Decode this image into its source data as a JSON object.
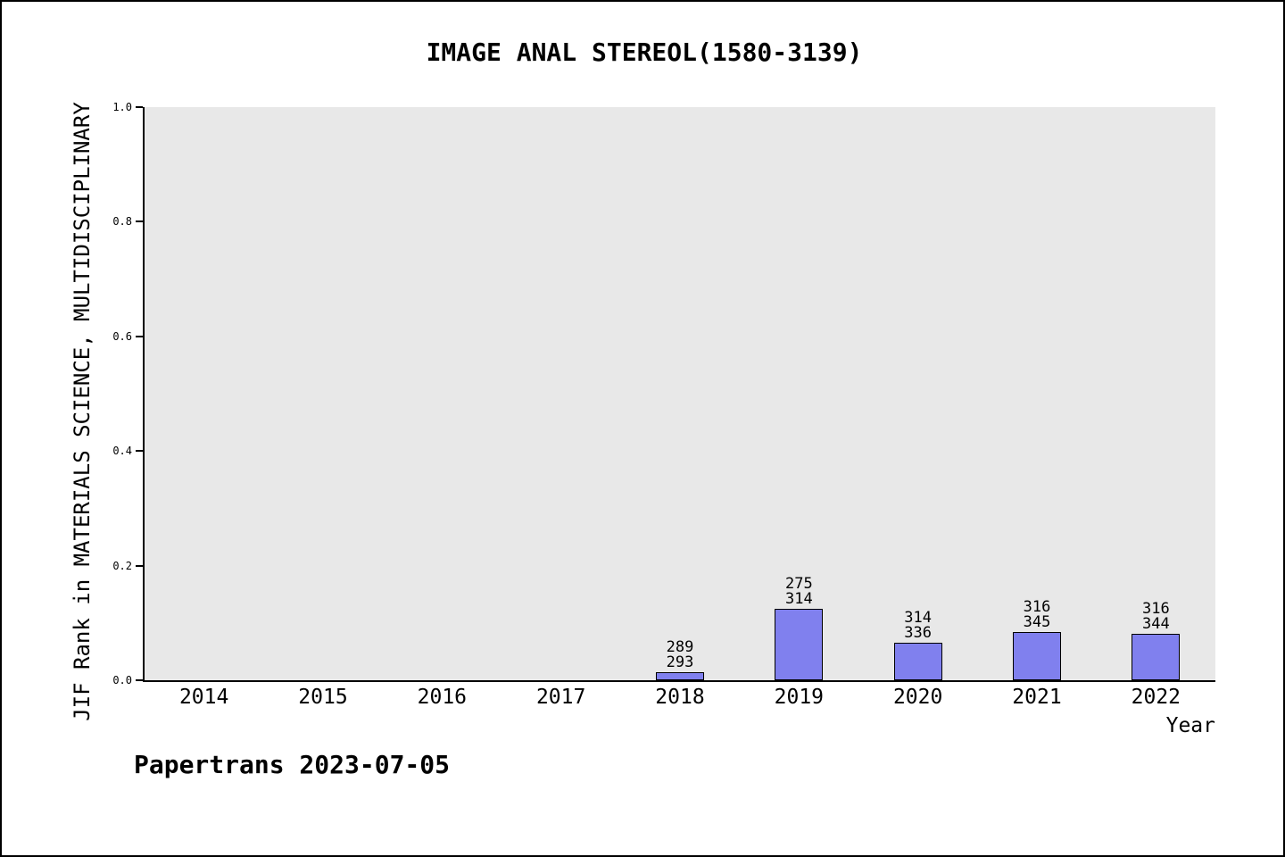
{
  "page": {
    "footer": "Papertrans 2023-07-05"
  },
  "chart_data": {
    "type": "bar",
    "title": "IMAGE ANAL STEREOL(1580-3139)",
    "xlabel": "Year",
    "ylabel": "JIF Rank in MATERIALS SCIENCE, MULTIDISCIPLINARY",
    "ylim": [
      0.0,
      1.0
    ],
    "yticks": [
      "0.0",
      "0.2",
      "0.4",
      "0.6",
      "0.8",
      "1.0"
    ],
    "grid": false,
    "legend": false,
    "plot_bg": "#e8e8e8",
    "bar_color": "#8080ee",
    "categories": [
      "2014",
      "2015",
      "2016",
      "2017",
      "2018",
      "2019",
      "2020",
      "2021",
      "2022"
    ],
    "bars": [
      {
        "year": "2018",
        "rank": 289,
        "total": 293,
        "value": 0.0137
      },
      {
        "year": "2019",
        "rank": 275,
        "total": 314,
        "value": 0.1242
      },
      {
        "year": "2020",
        "rank": 314,
        "total": 336,
        "value": 0.0655
      },
      {
        "year": "2021",
        "rank": 316,
        "total": 345,
        "value": 0.0841
      },
      {
        "year": "2022",
        "rank": 316,
        "total": 344,
        "value": 0.0814
      }
    ]
  }
}
